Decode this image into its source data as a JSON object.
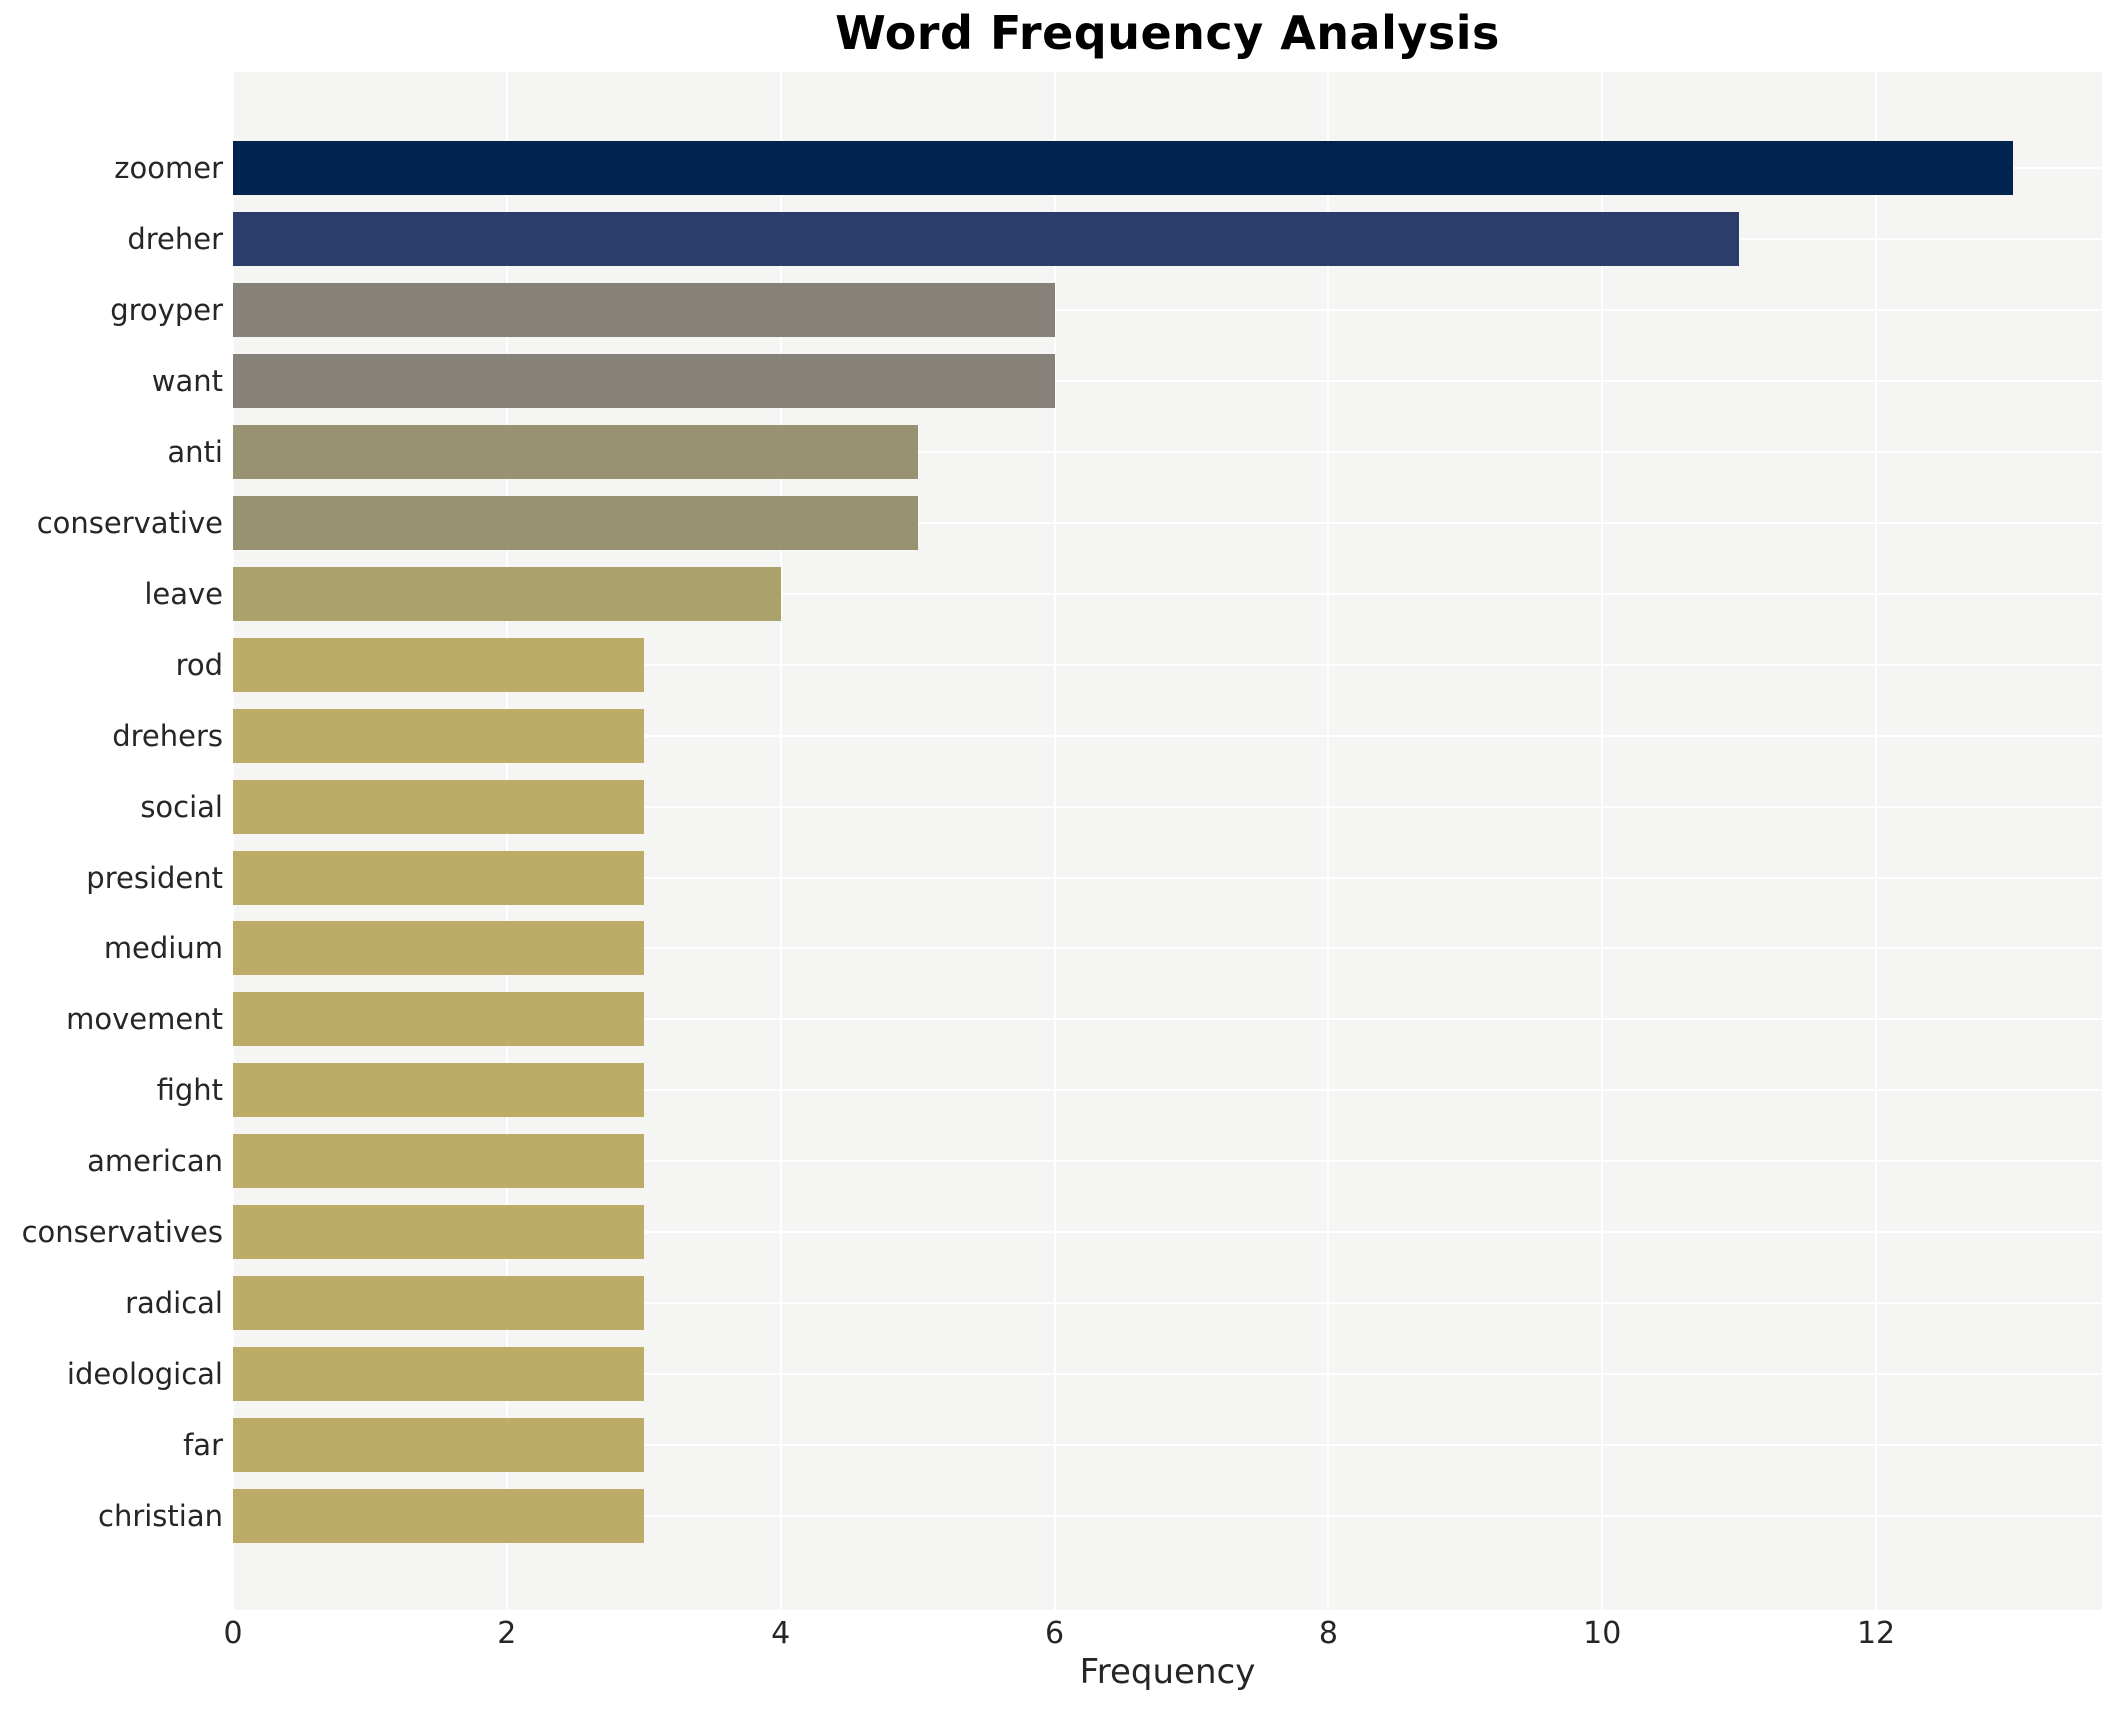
{
  "title": "Word Frequency Analysis",
  "axes": {
    "xlabel": "Frequency",
    "ylabel": ""
  },
  "chart_data": {
    "type": "bar",
    "orientation": "horizontal",
    "title": "Word Frequency Analysis",
    "xlabel": "Frequency",
    "ylabel": "",
    "categories": [
      "zoomer",
      "dreher",
      "groyper",
      "want",
      "anti",
      "conservative",
      "leave",
      "rod",
      "drehers",
      "social",
      "president",
      "medium",
      "movement",
      "fight",
      "american",
      "conservatives",
      "radical",
      "ideological",
      "far",
      "christian"
    ],
    "values": [
      13,
      11,
      6,
      6,
      5,
      5,
      4,
      3,
      3,
      3,
      3,
      3,
      3,
      3,
      3,
      3,
      3,
      3,
      3,
      3
    ],
    "bar_colors": [
      "#01234f",
      "#2b3e6b",
      "#868279",
      "#868279",
      "#989172",
      "#989172",
      "#aaa16b",
      "#bdac67",
      "#bdac67",
      "#bdac67",
      "#bdac67",
      "#bdac67",
      "#bdac67",
      "#bdac67",
      "#bdac67",
      "#bdac67",
      "#bdac67",
      "#bdac67",
      "#bdac67",
      "#bdac67"
    ],
    "xticks": [
      0,
      2,
      4,
      6,
      8,
      10,
      12
    ],
    "xlim": [
      0,
      13.65
    ],
    "grid": "white gridlines on light panel, vertical at x ticks, horizontal at bar centers",
    "legend": "none",
    "colors": {
      "plot_background": "#f5f5f4",
      "figure_background": "#ffffff",
      "gridline": "#ffffff",
      "tick_text": "#262626",
      "title_text": "#000000"
    }
  }
}
